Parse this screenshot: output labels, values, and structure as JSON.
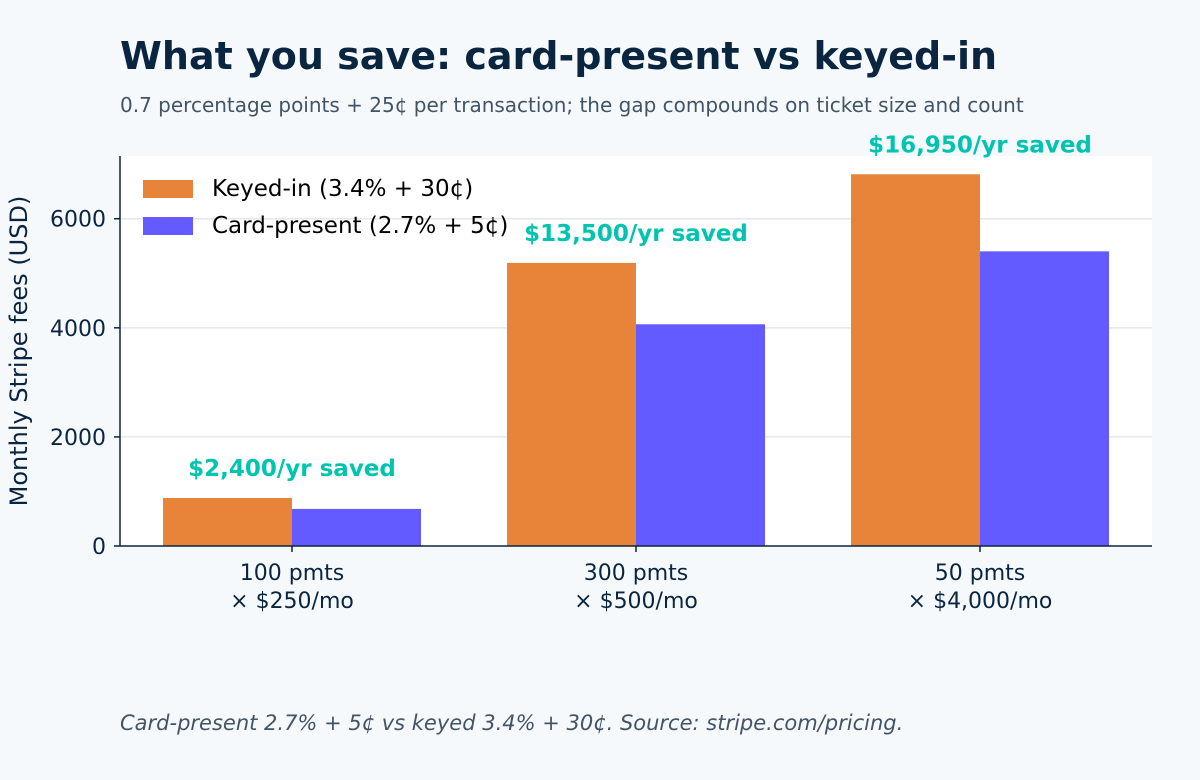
{
  "chart_data": {
    "type": "bar",
    "title": "What you save: card-present vs keyed-in",
    "subtitle": "0.7 percentage points + 25¢ per transaction; the gap compounds on ticket size and count",
    "ylabel": "Monthly Stripe fees (USD)",
    "xlabel": "",
    "ylim": [
      0,
      7150
    ],
    "yticks": [
      0,
      2000,
      4000,
      6000
    ],
    "grid": true,
    "legend_position": "top-left",
    "categories": [
      [
        "100 pmts",
        "× $250/mo"
      ],
      [
        "300 pmts",
        "× $500/mo"
      ],
      [
        "50 pmts",
        "× $4,000/mo"
      ]
    ],
    "series": [
      {
        "name": "Keyed-in (3.4% + 30¢)",
        "color": "#e8843a",
        "values": [
          880,
          5190,
          6815
        ]
      },
      {
        "name": "Card-present (2.7% + 5¢)",
        "color": "#635bff",
        "values": [
          680,
          4065,
          5402
        ]
      }
    ],
    "annotations": [
      "$2,400/yr saved",
      "$13,500/yr saved",
      "$16,950/yr saved"
    ],
    "annotation_color": "#00c4b0"
  },
  "footnote": "Card-present 2.7% + 5¢ vs keyed 3.4% + 30¢. Source: stripe.com/pricing."
}
